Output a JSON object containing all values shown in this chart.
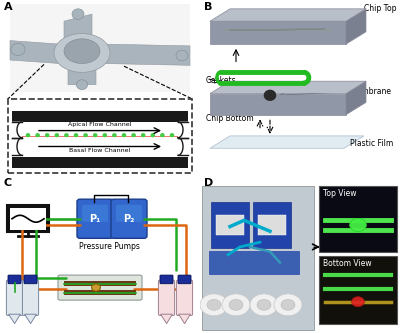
{
  "bg_color": "#ffffff",
  "label_A": "A",
  "label_B": "B",
  "label_C": "C",
  "label_D": "D",
  "chip_color": "#b8bfc8",
  "chip_shade": "#9098a8",
  "chip_dark": "#7a8090",
  "gasket_color": "#22bb22",
  "pump_color_top": "#4477cc",
  "pump_color_bot": "#2255aa",
  "tube_green": "#22aa22",
  "tube_orange": "#dd6611",
  "tube_red": "#cc3333",
  "channel_dark": "#1a1a1a",
  "cell_green": "#44cc44",
  "cell_red": "#dd4444",
  "vial_left_bg": "#e0e8ee",
  "vial_right_bg": "#f5dde0",
  "vial_cap": "#1a2d99",
  "text_fs": 5.5,
  "label_fs": 8,
  "dashed_color": "#333333",
  "monitor_bg": "#000000",
  "pump_label1": "P₁",
  "pump_label2": "P₂",
  "pump_text": "Pressure Pumps",
  "apical_text": "Apical Flow Channel",
  "basal_text": "Basal Flow Channel",
  "gasket_text": "Gaskets",
  "membrane_text": "Membrane",
  "chip_top_text": "Chip Top",
  "chip_bottom_text": "Chip Bottom",
  "plastic_film_text": "Plastic Film",
  "top_view_text": "Top View",
  "bottom_view_text": "Bottom View"
}
